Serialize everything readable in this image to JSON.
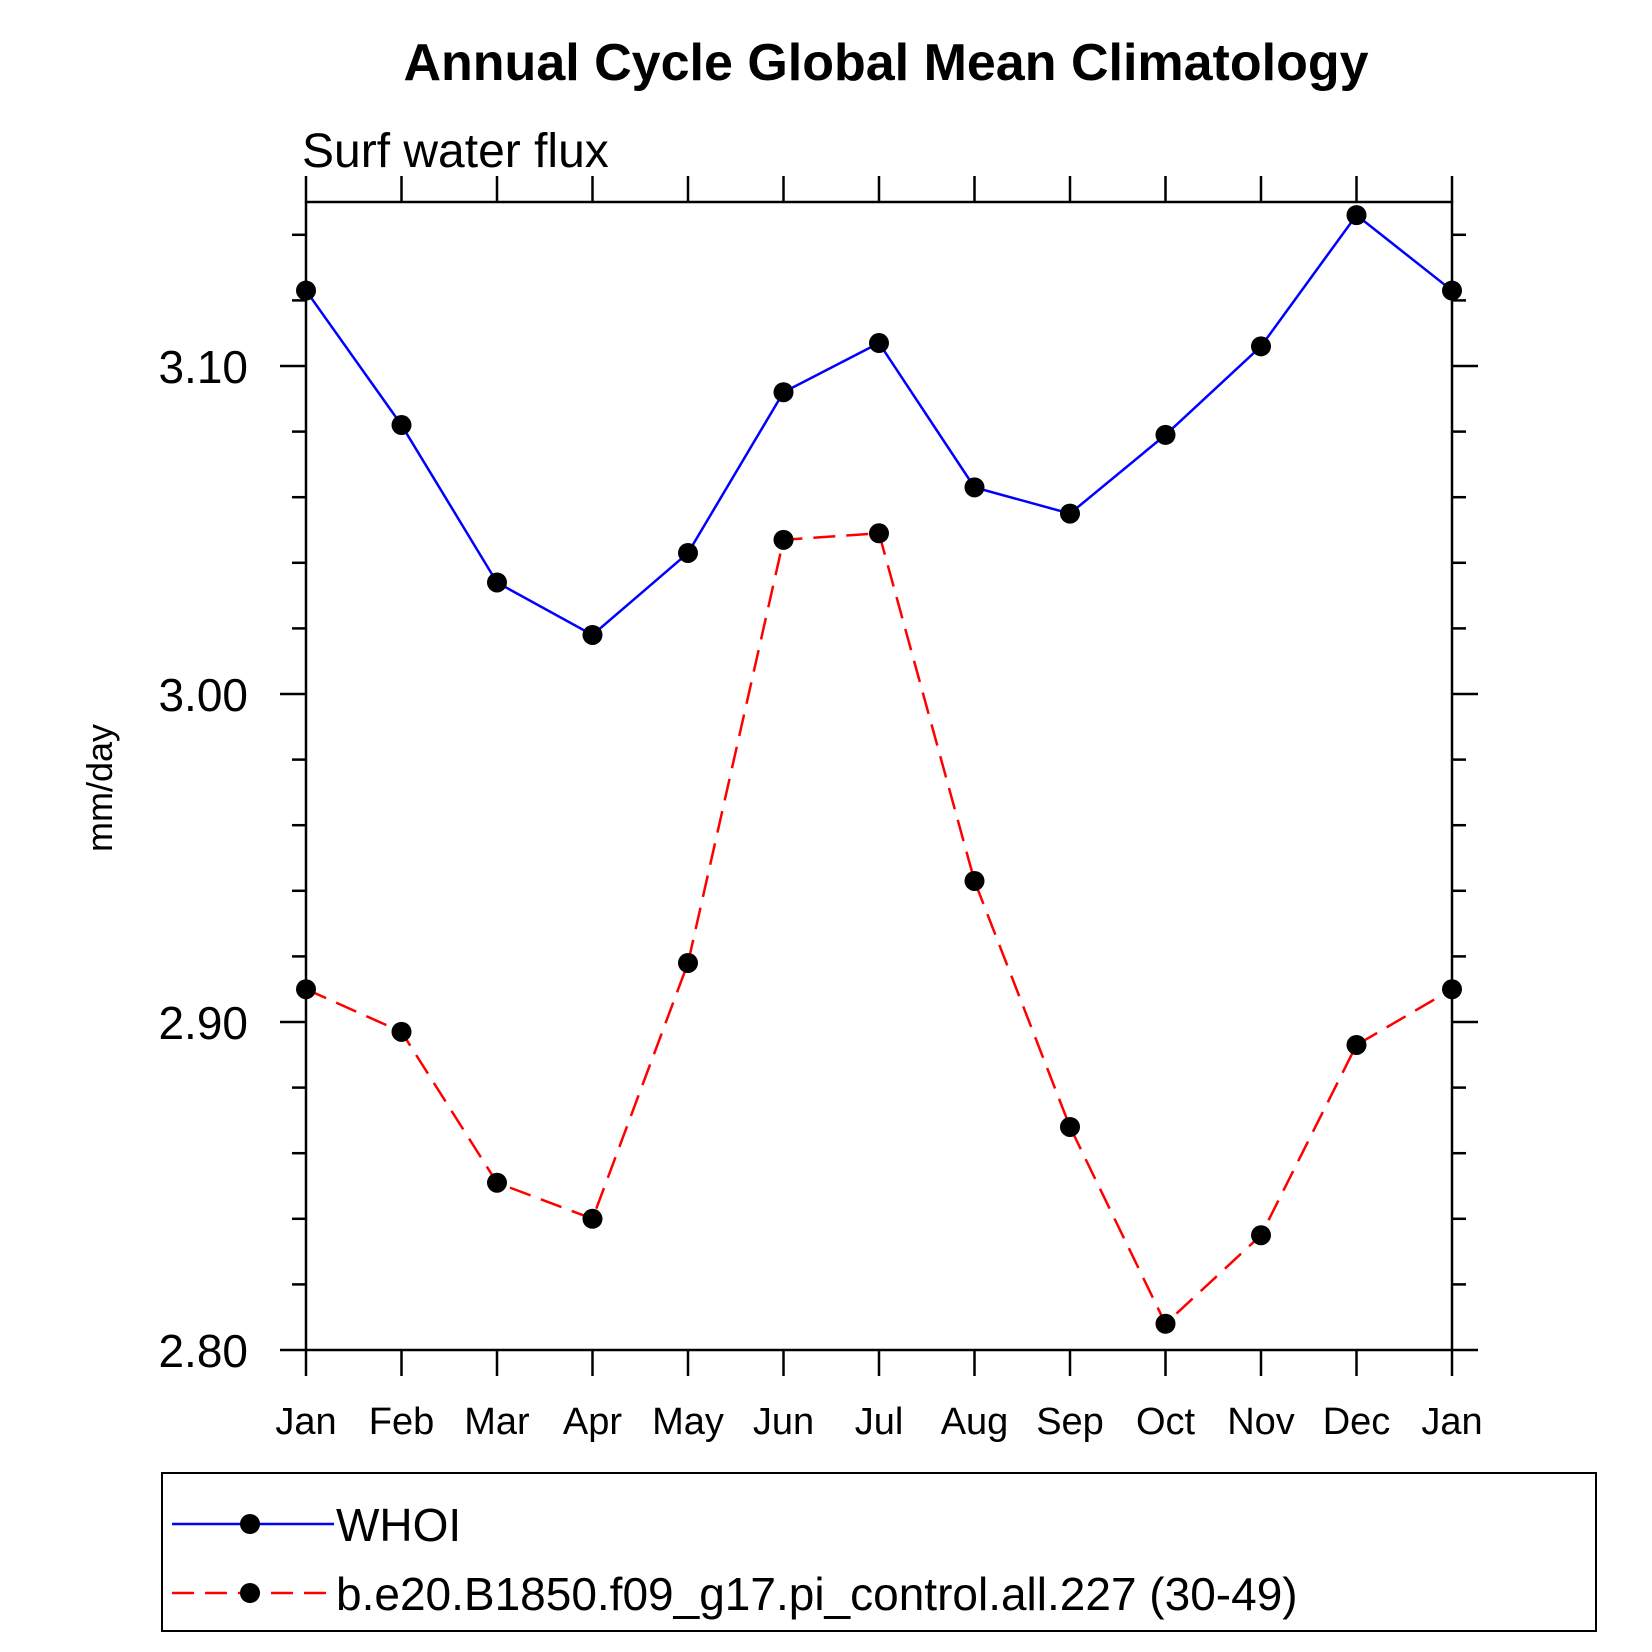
{
  "chart_data": {
    "type": "line",
    "title": "Annual Cycle Global Mean Climatology",
    "subtitle": "Surf water flux",
    "ylabel": "mm/day",
    "xlabel": "",
    "categories": [
      "Jan",
      "Feb",
      "Mar",
      "Apr",
      "May",
      "Jun",
      "Jul",
      "Aug",
      "Sep",
      "Oct",
      "Nov",
      "Dec",
      "Jan"
    ],
    "ylim": [
      2.8,
      3.15
    ],
    "yticks": [
      "3.10",
      "3.00",
      "2.90",
      "2.80"
    ],
    "ytick_values": [
      3.1,
      3.0,
      2.9,
      2.8
    ],
    "grid": false,
    "legend_position": "bottom",
    "series": [
      {
        "name": "WHOI",
        "color": "#0000ff",
        "line_style": "solid",
        "marker": "filled-circle",
        "values": [
          3.123,
          3.082,
          3.034,
          3.018,
          3.043,
          3.092,
          3.107,
          3.063,
          3.055,
          3.079,
          3.106,
          3.146,
          3.123
        ]
      },
      {
        "name": "b.e20.B1850.f09_g17.pi_control.all.227 (30-49)",
        "color": "#ff0000",
        "line_style": "dashed",
        "marker": "filled-circle",
        "values": [
          2.91,
          2.897,
          2.851,
          2.84,
          2.918,
          3.047,
          3.049,
          2.943,
          2.868,
          2.808,
          2.835,
          2.893,
          2.91
        ]
      }
    ]
  }
}
